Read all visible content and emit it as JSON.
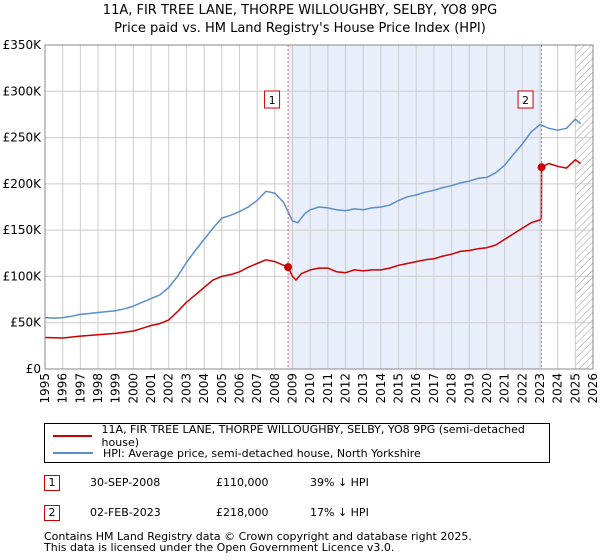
{
  "title": "11A, FIR TREE LANE, THORPE WILLOUGHBY, SELBY, YO8 9PG",
  "subtitle": "Price paid vs. HM Land Registry's House Price Index (HPI)",
  "colors": {
    "property": "#cc0000",
    "hpi": "#5b8fc9",
    "shade": "#e8eefa",
    "marker_line": "#e06666",
    "grid": "#cccccc"
  },
  "chart_data": {
    "type": "line",
    "xlim": [
      1995,
      2026
    ],
    "ylim": [
      0,
      350000
    ],
    "x_ticks": [
      1995,
      1996,
      1997,
      1998,
      1999,
      2000,
      2001,
      2002,
      2003,
      2004,
      2005,
      2006,
      2007,
      2008,
      2009,
      2010,
      2011,
      2012,
      2013,
      2014,
      2015,
      2016,
      2017,
      2018,
      2019,
      2020,
      2021,
      2022,
      2023,
      2024,
      2025,
      2026
    ],
    "x_tick_labels": [
      "1995",
      "1996",
      "1997",
      "1998",
      "1999",
      "2000",
      "2001",
      "2002",
      "2003",
      "2004",
      "2005",
      "2006",
      "2007",
      "2008",
      "2009",
      "2010",
      "2011",
      "2012",
      "2013",
      "2014",
      "2015",
      "2016",
      "2017",
      "2018",
      "2019",
      "2020",
      "2021",
      "2022",
      "2023",
      "2024",
      "2025",
      "2026"
    ],
    "y_ticks": [
      0,
      50000,
      100000,
      150000,
      200000,
      250000,
      300000,
      350000
    ],
    "y_tick_labels": [
      "£0",
      "£50K",
      "£100K",
      "£150K",
      "£200K",
      "£250K",
      "£300K",
      "£350K"
    ],
    "shaded_range": [
      2008.75,
      2023.09
    ],
    "hatched_from": 2025.0,
    "series": [
      {
        "name": "11A, FIR TREE LANE, THORPE WILLOUGHBY, SELBY, YO8 9PG (semi-detached house)",
        "color": "#cc0000",
        "points": [
          [
            1995.0,
            34000
          ],
          [
            1996.0,
            33500
          ],
          [
            1997.0,
            35500
          ],
          [
            1998.0,
            37000
          ],
          [
            1999.0,
            38500
          ],
          [
            2000.0,
            41000
          ],
          [
            2000.5,
            44000
          ],
          [
            2001.0,
            47000
          ],
          [
            2001.5,
            49000
          ],
          [
            2002.0,
            53000
          ],
          [
            2002.5,
            62000
          ],
          [
            2003.0,
            72000
          ],
          [
            2003.5,
            80000
          ],
          [
            2004.0,
            88000
          ],
          [
            2004.5,
            96000
          ],
          [
            2005.0,
            100000
          ],
          [
            2005.5,
            102000
          ],
          [
            2006.0,
            105000
          ],
          [
            2006.5,
            110000
          ],
          [
            2007.0,
            114000
          ],
          [
            2007.5,
            118000
          ],
          [
            2008.0,
            116000
          ],
          [
            2008.75,
            110000
          ],
          [
            2009.0,
            100000
          ],
          [
            2009.2,
            96000
          ],
          [
            2009.5,
            103000
          ],
          [
            2010.0,
            107000
          ],
          [
            2010.5,
            109000
          ],
          [
            2011.0,
            109000
          ],
          [
            2011.5,
            105000
          ],
          [
            2012.0,
            104000
          ],
          [
            2012.5,
            107000
          ],
          [
            2013.0,
            106000
          ],
          [
            2013.5,
            107000
          ],
          [
            2014.0,
            107000
          ],
          [
            2014.5,
            109000
          ],
          [
            2015.0,
            112000
          ],
          [
            2015.5,
            114000
          ],
          [
            2016.0,
            116000
          ],
          [
            2016.5,
            118000
          ],
          [
            2017.0,
            119000
          ],
          [
            2017.5,
            122000
          ],
          [
            2018.0,
            124000
          ],
          [
            2018.5,
            127000
          ],
          [
            2019.0,
            128000
          ],
          [
            2019.5,
            130000
          ],
          [
            2020.0,
            131000
          ],
          [
            2020.5,
            134000
          ],
          [
            2021.0,
            140000
          ],
          [
            2021.5,
            146000
          ],
          [
            2022.0,
            152000
          ],
          [
            2022.5,
            158000
          ],
          [
            2023.0,
            161000
          ],
          [
            2023.08,
            163000
          ],
          [
            2023.09,
            218000
          ],
          [
            2023.5,
            222000
          ],
          [
            2024.0,
            219000
          ],
          [
            2024.5,
            217000
          ],
          [
            2025.0,
            226000
          ],
          [
            2025.3,
            222000
          ]
        ]
      },
      {
        "name": "HPI: Average price, semi-detached house, North Yorkshire",
        "color": "#5b8fc9",
        "points": [
          [
            1995.0,
            55500
          ],
          [
            1995.5,
            55000
          ],
          [
            1996.0,
            55500
          ],
          [
            1996.5,
            57000
          ],
          [
            1997.0,
            59000
          ],
          [
            1997.5,
            60000
          ],
          [
            1998.0,
            61000
          ],
          [
            1998.5,
            62000
          ],
          [
            1999.0,
            63000
          ],
          [
            1999.5,
            65000
          ],
          [
            2000.0,
            68000
          ],
          [
            2000.5,
            72000
          ],
          [
            2001.0,
            76000
          ],
          [
            2001.5,
            80000
          ],
          [
            2002.0,
            88000
          ],
          [
            2002.5,
            100000
          ],
          [
            2003.0,
            115000
          ],
          [
            2003.5,
            128000
          ],
          [
            2004.0,
            140000
          ],
          [
            2004.5,
            152000
          ],
          [
            2005.0,
            163000
          ],
          [
            2005.5,
            166000
          ],
          [
            2006.0,
            170000
          ],
          [
            2006.5,
            175000
          ],
          [
            2007.0,
            182000
          ],
          [
            2007.5,
            192000
          ],
          [
            2008.0,
            190000
          ],
          [
            2008.5,
            180000
          ],
          [
            2009.0,
            160000
          ],
          [
            2009.3,
            158000
          ],
          [
            2009.7,
            168000
          ],
          [
            2010.0,
            172000
          ],
          [
            2010.5,
            175000
          ],
          [
            2011.0,
            174000
          ],
          [
            2011.5,
            172000
          ],
          [
            2012.0,
            171000
          ],
          [
            2012.5,
            173000
          ],
          [
            2013.0,
            172000
          ],
          [
            2013.5,
            174000
          ],
          [
            2014.0,
            175000
          ],
          [
            2014.5,
            177000
          ],
          [
            2015.0,
            182000
          ],
          [
            2015.5,
            186000
          ],
          [
            2016.0,
            188000
          ],
          [
            2016.5,
            191000
          ],
          [
            2017.0,
            193000
          ],
          [
            2017.5,
            196000
          ],
          [
            2018.0,
            198000
          ],
          [
            2018.5,
            201000
          ],
          [
            2019.0,
            203000
          ],
          [
            2019.5,
            206000
          ],
          [
            2020.0,
            207000
          ],
          [
            2020.5,
            212000
          ],
          [
            2021.0,
            220000
          ],
          [
            2021.5,
            232000
          ],
          [
            2022.0,
            243000
          ],
          [
            2022.5,
            256000
          ],
          [
            2023.0,
            264000
          ],
          [
            2023.5,
            260000
          ],
          [
            2024.0,
            258000
          ],
          [
            2024.5,
            260000
          ],
          [
            2025.0,
            270000
          ],
          [
            2025.3,
            265000
          ]
        ]
      }
    ],
    "markers": [
      {
        "label": "1",
        "x": 2008.75,
        "y": 110000
      },
      {
        "label": "2",
        "x": 2023.09,
        "y": 218000
      }
    ]
  },
  "legend": {
    "property": "11A, FIR TREE LANE, THORPE WILLOUGHBY, SELBY, YO8 9PG (semi-detached house)",
    "hpi": "HPI: Average price, semi-detached house, North Yorkshire"
  },
  "transactions": [
    {
      "num": "1",
      "date": "30-SEP-2008",
      "price": "£110,000",
      "hpi": "39% ↓ HPI"
    },
    {
      "num": "2",
      "date": "02-FEB-2023",
      "price": "£218,000",
      "hpi": "17% ↓ HPI"
    }
  ],
  "footer": {
    "line1": "Contains HM Land Registry data © Crown copyright and database right 2025.",
    "line2": "This data is licensed under the Open Government Licence v3.0."
  }
}
